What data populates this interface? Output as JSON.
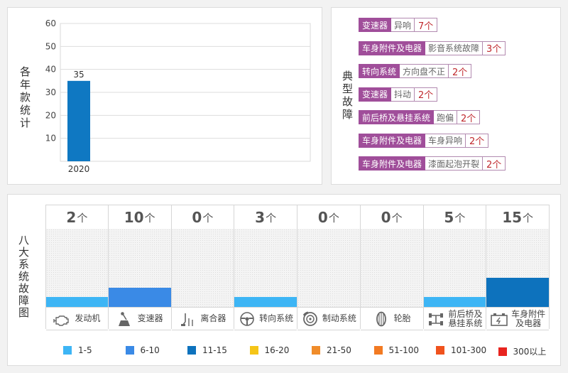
{
  "yearly": {
    "side_label": "各年款统计"
  },
  "faults": {
    "side_label": "典型故障",
    "items": [
      {
        "system": "变速器",
        "fault": "异响",
        "count": "7个"
      },
      {
        "system": "车身附件及电器",
        "fault": "影音系统故障",
        "count": "3个"
      },
      {
        "system": "转向系统",
        "fault": "方向盘不正",
        "count": "2个"
      },
      {
        "system": "变速器",
        "fault": "抖动",
        "count": "2个"
      },
      {
        "system": "前后桥及悬挂系统",
        "fault": "跑偏",
        "count": "2个"
      },
      {
        "system": "车身附件及电器",
        "fault": "车身异响",
        "count": "2个"
      },
      {
        "system": "车身附件及电器",
        "fault": "漆面起泡开裂",
        "count": "2个"
      }
    ]
  },
  "systems": {
    "side_label": "八大系统故障图",
    "unit": "个",
    "items": [
      {
        "num": "2",
        "label": [
          "发动机"
        ],
        "icon": "engine-icon",
        "level": 1,
        "color": "#3db5f5"
      },
      {
        "num": "10",
        "label": [
          "变速器"
        ],
        "icon": "gear-shifter-icon",
        "level": 2,
        "color": "#3a8ae6"
      },
      {
        "num": "0",
        "label": [
          "离合器"
        ],
        "icon": "clutch-pedal-icon",
        "level": 0,
        "color": "#3db5f5"
      },
      {
        "num": "3",
        "label": [
          "转向系统"
        ],
        "icon": "steering-wheel-icon",
        "level": 1,
        "color": "#3db5f5"
      },
      {
        "num": "0",
        "label": [
          "制动系统"
        ],
        "icon": "brake-disc-icon",
        "level": 0,
        "color": "#3db5f5"
      },
      {
        "num": "0",
        "label": [
          "轮胎"
        ],
        "icon": "tire-icon",
        "level": 0,
        "color": "#3db5f5"
      },
      {
        "num": "5",
        "label": [
          "前后桥及",
          "悬挂系统"
        ],
        "icon": "suspension-icon",
        "level": 1,
        "color": "#3db5f5"
      },
      {
        "num": "15",
        "label": [
          "车身附件",
          "及电器"
        ],
        "icon": "battery-icon",
        "level": 3,
        "color": "#0d72bd"
      }
    ]
  },
  "legend": [
    {
      "label": "1-5",
      "color": "#3db5f5"
    },
    {
      "label": "6-10",
      "color": "#3a8ae6"
    },
    {
      "label": "11-15",
      "color": "#0d72bd"
    },
    {
      "label": "16-20",
      "color": "#f5c518"
    },
    {
      "label": "21-50",
      "color": "#f08c2a"
    },
    {
      "label": "51-100",
      "color": "#f27a22"
    },
    {
      "label": "101-300",
      "color": "#f0521d"
    },
    {
      "label": "300以上",
      "color": "#e8241f"
    }
  ],
  "chart_data": [
    {
      "type": "bar",
      "categories": [
        "2020"
      ],
      "values": [
        35
      ],
      "ylim": [
        0,
        60
      ],
      "yticks": [
        10,
        20,
        30,
        40,
        50,
        60
      ],
      "grid": true,
      "bar_color": "#0f78c2"
    },
    {
      "type": "bar",
      "categories": [
        "发动机",
        "变速器",
        "离合器",
        "转向系统",
        "制动系统",
        "轮胎",
        "前后桥及悬挂系统",
        "车身附件及电器"
      ],
      "values": [
        2,
        10,
        0,
        3,
        0,
        0,
        5,
        15
      ]
    }
  ]
}
